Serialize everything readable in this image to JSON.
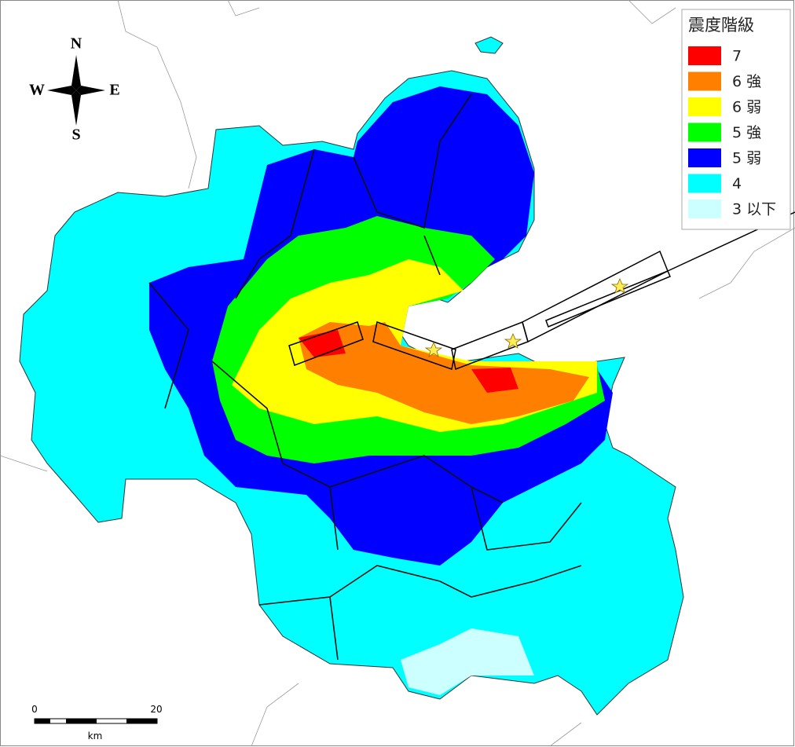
{
  "legend": {
    "title": "震度階級",
    "items": [
      {
        "label": "7",
        "color": "#ff0000"
      },
      {
        "label": "6 強",
        "color": "#ff8000"
      },
      {
        "label": "6 弱",
        "color": "#ffff00"
      },
      {
        "label": "5 強",
        "color": "#00ff00"
      },
      {
        "label": "5 弱",
        "color": "#0000ff"
      },
      {
        "label": "4",
        "color": "#00ffff"
      },
      {
        "label": "3 以下",
        "color": "#ccffff"
      }
    ]
  },
  "compass": {
    "north": "N",
    "south": "S",
    "east": "E",
    "west": "W"
  },
  "scale_bar": {
    "start": "0",
    "end": "20",
    "unit": "km"
  }
}
